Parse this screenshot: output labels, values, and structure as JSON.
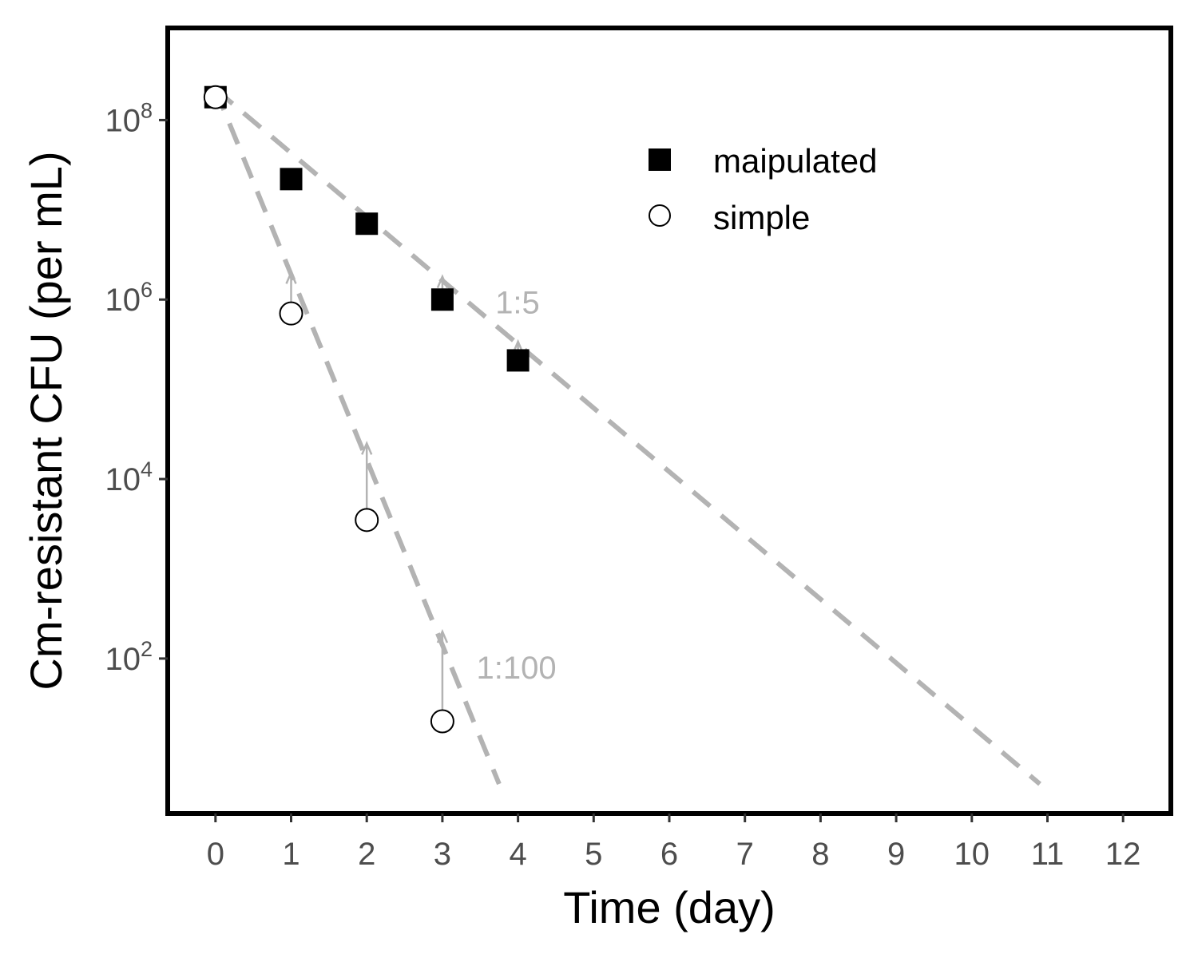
{
  "chart_data": {
    "type": "scatter",
    "title": "",
    "xlabel": "Time (day)",
    "ylabel": "Cm-resistant CFU (per mL)",
    "xlim": [
      -0.6,
      12.6
    ],
    "ylim_log10": [
      0.3,
      9.0
    ],
    "y_scale": "log10",
    "x_ticks": [
      "0",
      "1",
      "2",
      "3",
      "4",
      "5",
      "6",
      "7",
      "8",
      "9",
      "10",
      "11",
      "12"
    ],
    "y_ticks": [
      {
        "base": "10",
        "exp": "2",
        "value": 100
      },
      {
        "base": "10",
        "exp": "4",
        "value": 10000
      },
      {
        "base": "10",
        "exp": "6",
        "value": 1000000
      },
      {
        "base": "10",
        "exp": "8",
        "value": 100000000
      }
    ],
    "grid": false,
    "legend_position": "top-right",
    "series": [
      {
        "name": "maipulated",
        "marker": "filled-square",
        "color": "#000000",
        "x": [
          0,
          1,
          2,
          3,
          4
        ],
        "y": [
          180000000,
          22000000,
          7000000,
          1000000,
          210000
        ]
      },
      {
        "name": "simple",
        "marker": "open-circle",
        "color": "#000000",
        "x": [
          0,
          1,
          2,
          3
        ],
        "y": [
          180000000,
          700000,
          3500,
          20
        ]
      }
    ],
    "fit_lines": [
      {
        "label": "1:5",
        "color": "#b3b3b3",
        "x": [
          0,
          10.9
        ],
        "y": [
          220000000,
          4
        ]
      },
      {
        "label": "1:100",
        "color": "#b3b3b3",
        "x": [
          0,
          3.75
        ],
        "y": [
          220000000,
          4
        ]
      }
    ],
    "arrows": [
      {
        "x": 1,
        "y_from": 700000,
        "y_to": 2000000
      },
      {
        "x": 2,
        "y_from": 3500,
        "y_to": 25000
      },
      {
        "x": 3,
        "y_from": 20,
        "y_to": 200
      },
      {
        "x": 3,
        "y_from": 1000000,
        "y_to": 1800000
      },
      {
        "x": 4,
        "y_from": 210000,
        "y_to": 340000
      }
    ],
    "annotations": [
      {
        "text": "1:5",
        "x": 3.7,
        "y": 700000
      },
      {
        "text": "1:100",
        "x": 3.45,
        "y": 60
      }
    ],
    "colors": {
      "frame": "#000000",
      "fit": "#b3b3b3",
      "tick_text": "#4d4d4d"
    }
  }
}
